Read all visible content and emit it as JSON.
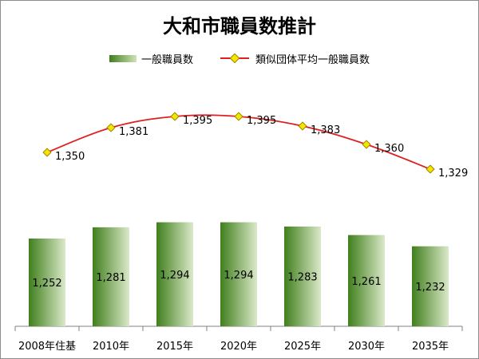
{
  "title": "大和市職員数推計",
  "colors": {
    "bar_dark": "#3f7f1c",
    "bar_light": "#dbe9c9",
    "line": "#e02020",
    "marker_fill": "#f2e600",
    "marker_stroke": "#a08000",
    "axis": "#808080"
  },
  "chart_data": {
    "type": "bar",
    "title": "大和市職員数推計",
    "categories": [
      "2008年住基",
      "2010年",
      "2015年",
      "2020年",
      "2025年",
      "2030年",
      "2035年"
    ],
    "series": [
      {
        "name": "一般職員数",
        "type": "bar",
        "values": [
          1252,
          1281,
          1294,
          1294,
          1283,
          1261,
          1232
        ],
        "labels": [
          "1,252",
          "1,281",
          "1,294",
          "1,294",
          "1,283",
          "1,261",
          "1,232"
        ]
      },
      {
        "name": "類似団体平均一般職員数",
        "type": "line",
        "values": [
          1350,
          1381,
          1395,
          1395,
          1383,
          1360,
          1329
        ],
        "labels": [
          "1,350",
          "1,381",
          "1,395",
          "1,395",
          "1,383",
          "1,360",
          "1,329"
        ]
      }
    ],
    "legend_position": "top",
    "grid": false
  }
}
